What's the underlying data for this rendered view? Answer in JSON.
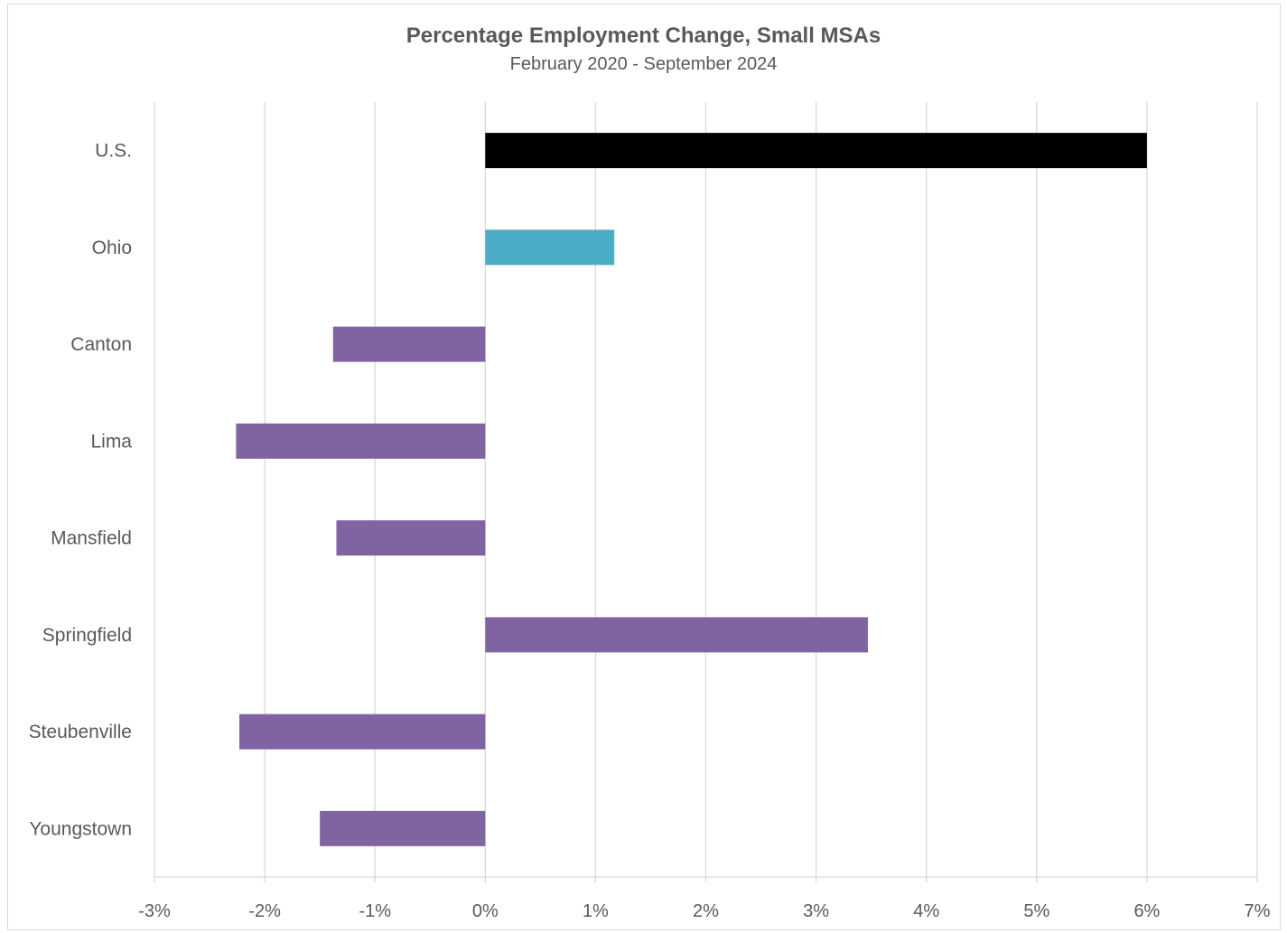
{
  "chart_data": {
    "type": "bar",
    "orientation": "horizontal",
    "title": "Percentage Employment Change, Small MSAs",
    "subtitle": "February 2020 - September 2024",
    "xlabel": "",
    "ylabel": "",
    "categories": [
      "U.S.",
      "Ohio",
      "Canton",
      "Lima",
      "Mansfield",
      "Springfield",
      "Steubenville",
      "Youngstown"
    ],
    "values": [
      6.0,
      1.17,
      -1.38,
      -2.26,
      -1.35,
      3.47,
      -2.23,
      -1.5
    ],
    "colors": [
      "#000000",
      "#4bacc6",
      "#8064a2",
      "#8064a2",
      "#8064a2",
      "#8064a2",
      "#8064a2",
      "#8064a2"
    ],
    "xlim": [
      -3,
      7
    ],
    "ticks": [
      -3,
      -2,
      -1,
      0,
      1,
      2,
      3,
      4,
      5,
      6,
      7
    ],
    "tick_labels": [
      "-3%",
      "-2%",
      "-1%",
      "0%",
      "1%",
      "2%",
      "3%",
      "4%",
      "5%",
      "6%",
      "7%"
    ],
    "grid": "vertical",
    "legend": "none"
  },
  "colors": {
    "gridline": "#d9d9d9",
    "text": "#595959",
    "frame": "#d9d9d9"
  }
}
